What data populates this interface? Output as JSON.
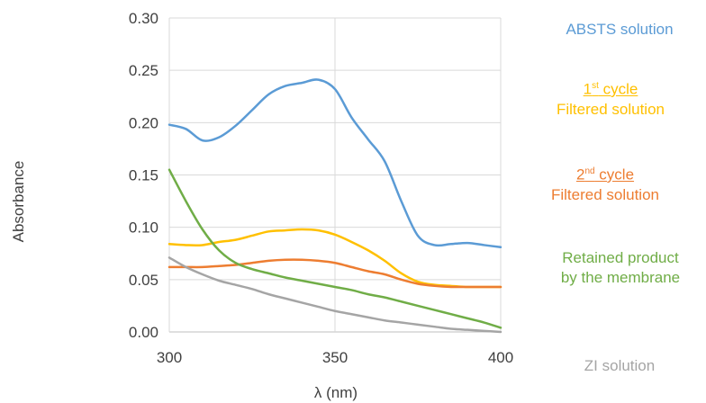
{
  "chart_data": {
    "type": "line",
    "xlabel": "λ (nm)",
    "ylabel": "Absorbance",
    "xlim": [
      300,
      400
    ],
    "ylim": [
      0,
      0.3
    ],
    "x_ticks": [
      "300",
      "350",
      "400"
    ],
    "y_ticks": [
      "0.00",
      "0.05",
      "0.10",
      "0.15",
      "0.20",
      "0.25",
      "0.30"
    ],
    "grid": true,
    "legend_position": "right",
    "series": [
      {
        "key": "absts",
        "color": "#5b9bd5",
        "x": [
          300,
          305,
          310,
          315,
          320,
          325,
          330,
          335,
          340,
          345,
          350,
          355,
          360,
          365,
          370,
          375,
          380,
          385,
          390,
          395,
          400
        ],
        "y": [
          0.198,
          0.194,
          0.183,
          0.186,
          0.197,
          0.212,
          0.227,
          0.235,
          0.238,
          0.241,
          0.232,
          0.205,
          0.184,
          0.163,
          0.125,
          0.092,
          0.083,
          0.084,
          0.085,
          0.083,
          0.081
        ]
      },
      {
        "key": "cycle1",
        "color": "#ffc000",
        "x": [
          300,
          305,
          310,
          315,
          320,
          325,
          330,
          335,
          340,
          345,
          350,
          355,
          360,
          365,
          370,
          375,
          380,
          385,
          390,
          395,
          400
        ],
        "y": [
          0.084,
          0.083,
          0.083,
          0.086,
          0.088,
          0.092,
          0.096,
          0.097,
          0.098,
          0.097,
          0.093,
          0.086,
          0.078,
          0.068,
          0.056,
          0.048,
          0.045,
          0.044,
          0.043,
          0.043,
          0.043
        ]
      },
      {
        "key": "cycle2",
        "color": "#ed7d31",
        "x": [
          300,
          305,
          310,
          315,
          320,
          325,
          330,
          335,
          340,
          345,
          350,
          355,
          360,
          365,
          370,
          375,
          380,
          385,
          390,
          395,
          400
        ],
        "y": [
          0.062,
          0.062,
          0.062,
          0.063,
          0.064,
          0.066,
          0.068,
          0.069,
          0.069,
          0.068,
          0.066,
          0.062,
          0.058,
          0.055,
          0.05,
          0.046,
          0.044,
          0.043,
          0.043,
          0.043,
          0.043
        ]
      },
      {
        "key": "retained",
        "color": "#70ad47",
        "x": [
          300,
          305,
          310,
          315,
          320,
          325,
          330,
          335,
          340,
          345,
          350,
          355,
          360,
          365,
          370,
          375,
          380,
          385,
          390,
          395,
          400
        ],
        "y": [
          0.155,
          0.125,
          0.098,
          0.078,
          0.066,
          0.06,
          0.056,
          0.052,
          0.049,
          0.046,
          0.043,
          0.04,
          0.036,
          0.033,
          0.029,
          0.025,
          0.021,
          0.017,
          0.013,
          0.009,
          0.004
        ]
      },
      {
        "key": "zi",
        "color": "#a5a5a5",
        "x": [
          300,
          305,
          310,
          315,
          320,
          325,
          330,
          335,
          340,
          345,
          350,
          355,
          360,
          365,
          370,
          375,
          380,
          385,
          390,
          395,
          400
        ],
        "y": [
          0.071,
          0.062,
          0.055,
          0.049,
          0.045,
          0.041,
          0.036,
          0.032,
          0.028,
          0.024,
          0.02,
          0.017,
          0.014,
          0.011,
          0.009,
          0.007,
          0.005,
          0.003,
          0.002,
          0.001,
          0.0
        ]
      }
    ]
  },
  "legend": {
    "absts": {
      "text": "ABSTS solution",
      "color": "#5b9bd5"
    },
    "cycle1": {
      "num": "1",
      "sup": "st",
      "cycle": " cycle",
      "text": "Filtered solution",
      "color": "#ffc000"
    },
    "cycle2": {
      "num": "2",
      "sup": "nd",
      "cycle": " cycle",
      "text": "Filtered solution",
      "color": "#ed7d31"
    },
    "retained": {
      "line1": "Retained product",
      "line2": "by the membrane",
      "color": "#70ad47"
    },
    "zi": {
      "text": "ZI solution",
      "color": "#a5a5a5"
    }
  }
}
